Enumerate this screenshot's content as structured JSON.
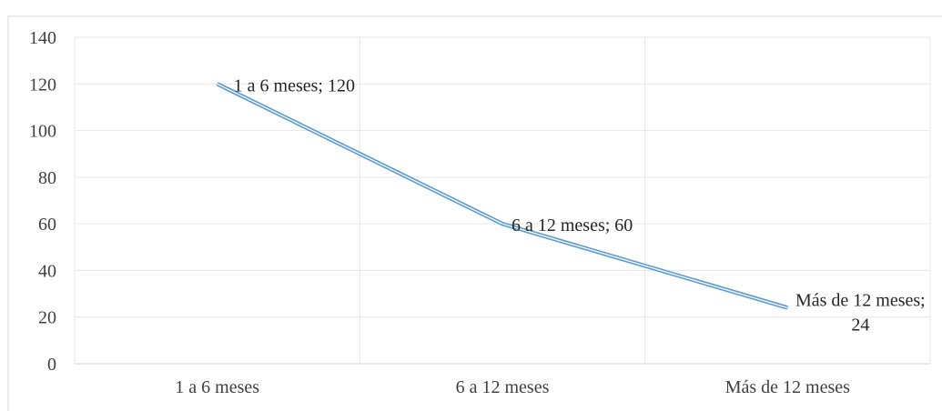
{
  "chart_data": {
    "type": "line",
    "categories": [
      "1 a 6 meses",
      "6 a 12 meses",
      "Más de 12 meses"
    ],
    "series": [
      {
        "values": [
          120,
          60,
          24
        ],
        "data_labels": [
          [
            "1 a 6 meses; 120"
          ],
          [
            "6 a 12 meses; 60"
          ],
          [
            "Más de 12 meses;",
            "24"
          ]
        ]
      }
    ],
    "title": "",
    "xlabel": "",
    "ylabel": "",
    "ylim": [
      0,
      140
    ],
    "yticks": [
      "0",
      "20",
      "40",
      "60",
      "80",
      "100",
      "120",
      "140"
    ],
    "grid": true,
    "legend": "none",
    "line_color": "#5b9bd5",
    "grid_color": "#e6e6e6"
  }
}
